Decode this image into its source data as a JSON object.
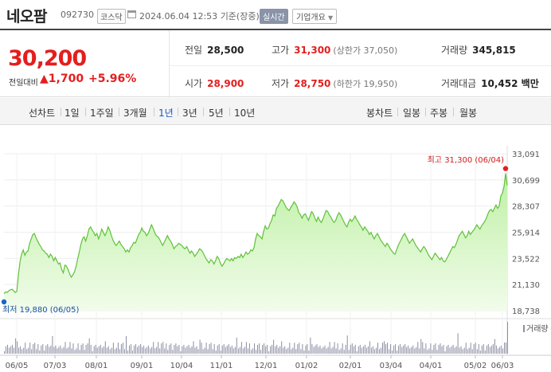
{
  "header": {
    "stock_name": "네오팜",
    "stock_code": "092730",
    "market": "코스닥",
    "datetime": "2024.06.04 12:53",
    "basis": "기준(장중)",
    "realtime_badge": "실시간",
    "corp_button": "기업개요"
  },
  "price": {
    "current": "30,200",
    "change_label": "전일대비",
    "change": "1,700",
    "change_pct": "+5.96%",
    "colors": {
      "up": "#e41e1e"
    }
  },
  "stats": {
    "prev_label": "전일",
    "prev": "28,500",
    "high_label": "고가",
    "high": "31,300",
    "upper_limit": "(상한가 37,050)",
    "volume_label": "거래량",
    "volume": "345,815",
    "open_label": "시가",
    "open": "28,900",
    "low_label": "저가",
    "low": "28,750",
    "lower_limit": "(하한가 19,950)",
    "amount_label": "거래대금",
    "amount": "10,452 백만"
  },
  "tabs": {
    "line_label": "선차트",
    "line": [
      "1일",
      "1주일",
      "3개월",
      "1년",
      "3년",
      "5년",
      "10년"
    ],
    "active": "1년",
    "candle_label": "봉차트",
    "candle": [
      "일봉",
      "주봉",
      "월봉"
    ]
  },
  "chart_data": {
    "type": "area",
    "y_ticks": [
      "33,091",
      "30,699",
      "28,307",
      "25,914",
      "23,522",
      "21,130",
      "18,738"
    ],
    "ylim": [
      18738,
      33091
    ],
    "x_ticks": [
      "06/05",
      "07/03",
      "08/01",
      "09/01",
      "10/04",
      "11/01",
      "12/01",
      "01/02",
      "02/01",
      "03/04",
      "04/01",
      "05/02",
      "06/03"
    ],
    "high_annotation": "최고 31,300 (06/04)",
    "low_annotation": "최저 19,880 (06/05)",
    "volume_legend": "거래량",
    "values": [
      20300,
      20450,
      20400,
      20550,
      20650,
      20700,
      20550,
      20400,
      20500,
      22000,
      23200,
      23900,
      24300,
      23800,
      24100,
      24200,
      24900,
      25300,
      25700,
      25800,
      25400,
      25100,
      24800,
      24600,
      24300,
      24200,
      24000,
      23900,
      23600,
      23900,
      23700,
      23300,
      23600,
      23300,
      23000,
      23100,
      22500,
      22200,
      22900,
      22800,
      22500,
      22100,
      21800,
      22000,
      22300,
      22800,
      23500,
      24100,
      24800,
      25300,
      25500,
      25100,
      25600,
      26200,
      26400,
      26100,
      25900,
      25600,
      25800,
      25300,
      25700,
      26200,
      25900,
      25600,
      25900,
      26400,
      26100,
      25600,
      25200,
      24900,
      24700,
      24900,
      25100,
      24800,
      24600,
      24400,
      24100,
      24300,
      24100,
      24500,
      24700,
      25000,
      24900,
      25300,
      25700,
      25900,
      26300,
      26000,
      25900,
      25600,
      25800,
      26200,
      26600,
      26300,
      25900,
      25600,
      25500,
      25300,
      25000,
      24700,
      25000,
      25300,
      25600,
      25300,
      25100,
      24800,
      24400,
      24600,
      24700,
      24900,
      24800,
      24700,
      24500,
      24400,
      24600,
      24300,
      24000,
      24200,
      24000,
      23700,
      23900,
      24100,
      24400,
      24300,
      24100,
      23800,
      23500,
      23300,
      23100,
      23400,
      23300,
      23000,
      23300,
      23700,
      23500,
      23100,
      22800,
      23000,
      23300,
      23500,
      23400,
      23300,
      23500,
      23300,
      23600,
      23500,
      23700,
      23600,
      23900,
      23600,
      23800,
      24100,
      23900,
      24000,
      24300,
      24200,
      24500,
      25300,
      25800,
      25600,
      25500,
      25300,
      26000,
      26500,
      26200,
      26300,
      26700,
      27000,
      27500,
      27400,
      28100,
      28300,
      28600,
      28900,
      28800,
      28500,
      28200,
      28000,
      27900,
      28200,
      28400,
      28700,
      28500,
      28200,
      27700,
      27500,
      27200,
      27500,
      27600,
      27300,
      27000,
      27400,
      27800,
      27600,
      27200,
      26900,
      27300,
      27000,
      26800,
      27100,
      27500,
      27900,
      27800,
      27500,
      27300,
      27000,
      26800,
      27000,
      27400,
      27700,
      27500,
      27200,
      26900,
      26600,
      26400,
      26800,
      27100,
      26900,
      27100,
      27400,
      27100,
      26900,
      26600,
      26400,
      26100,
      26400,
      26200,
      26000,
      25700,
      25900,
      25600,
      25300,
      25600,
      25800,
      25500,
      25200,
      25000,
      24800,
      24600,
      24900,
      24700,
      24400,
      24200,
      24000,
      23900,
      24300,
      24700,
      25000,
      25300,
      25600,
      25800,
      25500,
      25200,
      24900,
      25100,
      25300,
      25000,
      24700,
      24500,
      24300,
      24100,
      24400,
      24600,
      24400,
      24100,
      23800,
      23600,
      23400,
      23700,
      24000,
      23800,
      23600,
      23400,
      23600,
      23300,
      23200,
      23400,
      23700,
      24000,
      24300,
      24600,
      24500,
      24800,
      25200,
      25600,
      25800,
      26000,
      25700,
      25400,
      25600,
      26000,
      25700,
      25900,
      26100,
      26300,
      26600,
      26400,
      26200,
      26500,
      26700,
      26900,
      27200,
      27600,
      27900,
      28000,
      27800,
      28100,
      28400,
      28100,
      28300,
      29200,
      29500,
      30100,
      31300,
      30200
    ]
  }
}
